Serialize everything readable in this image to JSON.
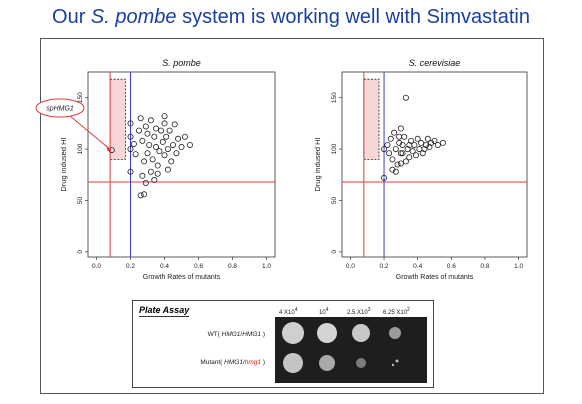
{
  "title": {
    "prefix": "Our ",
    "species": "S. pombe",
    "suffix": " system is working well with Simvastatin"
  },
  "chart_data": [
    {
      "type": "scatter",
      "title": "S. pombe",
      "xlabel": "Growth Rates of mutants",
      "ylabel": "Drug indused HI",
      "xlim": [
        -0.05,
        1.05
      ],
      "ylim": [
        -5,
        175
      ],
      "xticks": [
        0.0,
        0.2,
        0.4,
        0.6,
        0.8,
        1.0
      ],
      "yticks": [
        0,
        50,
        100,
        150
      ],
      "hline": 68,
      "vline_red": 0.08,
      "vline_blue": 0.2,
      "highlight_box": {
        "x": [
          0.08,
          0.17
        ],
        "y": [
          90,
          168
        ]
      },
      "annotation": {
        "text": "spHMG1",
        "point": [
          0.09,
          99
        ]
      },
      "points": [
        [
          0.09,
          99
        ],
        [
          0.2,
          100
        ],
        [
          0.2,
          112
        ],
        [
          0.2,
          125
        ],
        [
          0.2,
          78
        ],
        [
          0.22,
          105
        ],
        [
          0.23,
          95
        ],
        [
          0.25,
          118
        ],
        [
          0.26,
          130
        ],
        [
          0.27,
          108
        ],
        [
          0.28,
          88
        ],
        [
          0.29,
          122
        ],
        [
          0.3,
          115
        ],
        [
          0.3,
          96
        ],
        [
          0.31,
          104
        ],
        [
          0.32,
          128
        ],
        [
          0.33,
          90
        ],
        [
          0.34,
          112
        ],
        [
          0.35,
          120
        ],
        [
          0.35,
          102
        ],
        [
          0.36,
          84
        ],
        [
          0.37,
          98
        ],
        [
          0.38,
          118
        ],
        [
          0.39,
          107
        ],
        [
          0.4,
          132
        ],
        [
          0.4,
          94
        ],
        [
          0.41,
          112
        ],
        [
          0.42,
          100
        ],
        [
          0.43,
          118
        ],
        [
          0.44,
          88
        ],
        [
          0.45,
          104
        ],
        [
          0.46,
          124
        ],
        [
          0.47,
          96
        ],
        [
          0.48,
          110
        ],
        [
          0.5,
          102
        ],
        [
          0.52,
          112
        ],
        [
          0.55,
          104
        ],
        [
          0.27,
          74
        ],
        [
          0.29,
          67
        ],
        [
          0.32,
          78
        ],
        [
          0.34,
          70
        ],
        [
          0.36,
          76
        ],
        [
          0.26,
          55
        ],
        [
          0.28,
          56
        ],
        [
          0.4,
          125
        ],
        [
          0.42,
          80
        ]
      ]
    },
    {
      "type": "scatter",
      "title": "S. cerevisiae",
      "xlabel": "Growth Rates of mutants",
      "ylabel": "Drug indused HI",
      "xlim": [
        -0.05,
        1.05
      ],
      "ylim": [
        -5,
        175
      ],
      "xticks": [
        0.0,
        0.2,
        0.4,
        0.6,
        0.8,
        1.0
      ],
      "yticks": [
        0,
        50,
        100,
        150
      ],
      "hline": 68,
      "vline_red": 0.08,
      "vline_blue": 0.2,
      "highlight_box": {
        "x": [
          0.08,
          0.17
        ],
        "y": [
          90,
          168
        ]
      },
      "points": [
        [
          0.2,
          72
        ],
        [
          0.2,
          100
        ],
        [
          0.22,
          104
        ],
        [
          0.23,
          96
        ],
        [
          0.24,
          110
        ],
        [
          0.25,
          90
        ],
        [
          0.26,
          116
        ],
        [
          0.27,
          100
        ],
        [
          0.28,
          85
        ],
        [
          0.29,
          106
        ],
        [
          0.3,
          120
        ],
        [
          0.3,
          96
        ],
        [
          0.31,
          104
        ],
        [
          0.32,
          112
        ],
        [
          0.33,
          150
        ],
        [
          0.34,
          100
        ],
        [
          0.35,
          92
        ],
        [
          0.36,
          108
        ],
        [
          0.37,
          98
        ],
        [
          0.38,
          104
        ],
        [
          0.4,
          110
        ],
        [
          0.41,
          100
        ],
        [
          0.42,
          106
        ],
        [
          0.43,
          96
        ],
        [
          0.45,
          104
        ],
        [
          0.46,
          110
        ],
        [
          0.48,
          106
        ],
        [
          0.5,
          108
        ],
        [
          0.52,
          104
        ],
        [
          0.55,
          106
        ],
        [
          0.27,
          78
        ],
        [
          0.3,
          86
        ],
        [
          0.33,
          88
        ],
        [
          0.25,
          80
        ],
        [
          0.35,
          104
        ],
        [
          0.39,
          94
        ],
        [
          0.44,
          100
        ],
        [
          0.47,
          102
        ],
        [
          0.29,
          112
        ],
        [
          0.31,
          96
        ]
      ]
    }
  ],
  "plate_assay": {
    "title": "Plate Assay",
    "concentrations": [
      "4 X10",
      "10",
      "2.5 X10",
      "6.25 X10"
    ],
    "concentration_exponents": [
      "4",
      "4",
      "3",
      "2"
    ],
    "rows": [
      {
        "prefix": "WT( ",
        "genotype_a": "HMG1",
        "slash": "/",
        "genotype_b": "HMG1",
        "suffix": " )"
      },
      {
        "prefix": "Mutant( ",
        "genotype_a": "HMG1",
        "slash": "/",
        "genotype_b": "hmg1",
        "suffix": " )"
      }
    ]
  }
}
